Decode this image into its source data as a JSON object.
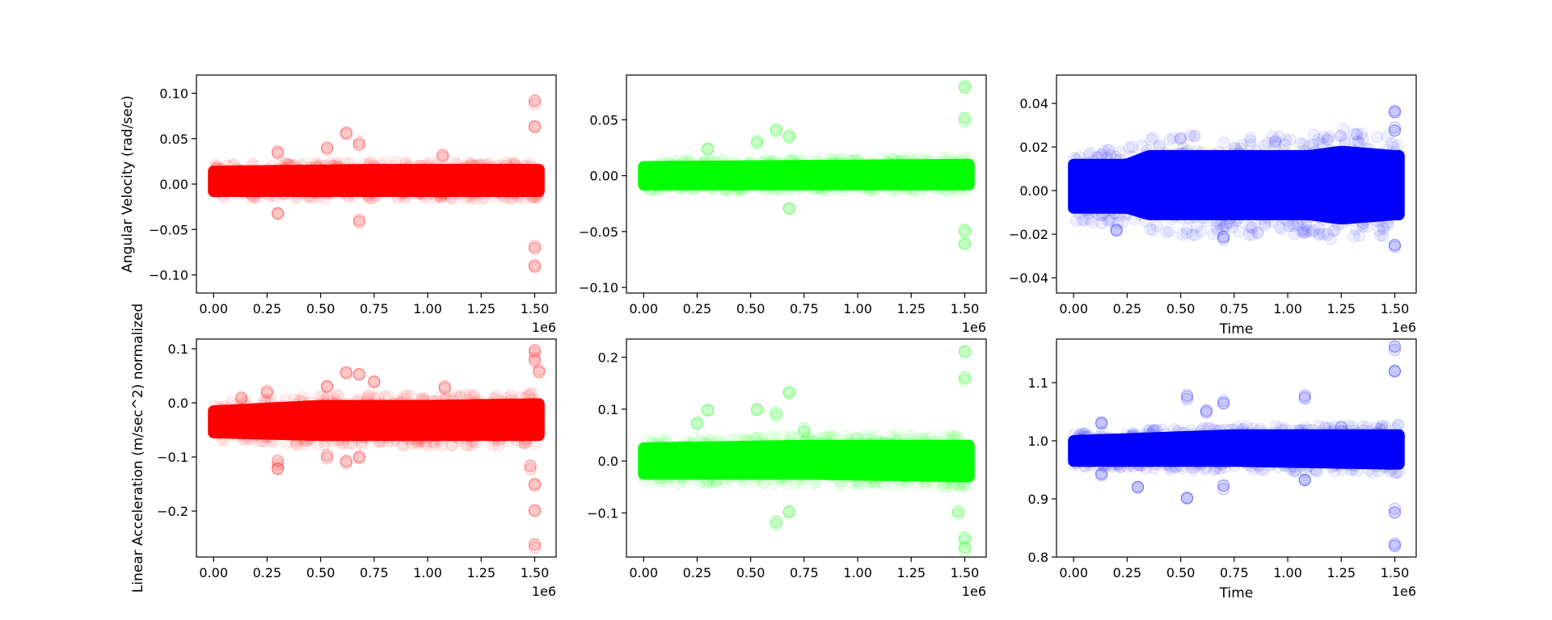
{
  "figure": {
    "row_ylabels": [
      "Angular Velocity (rad/sec)",
      "Linear Acceleration (m/sec^2) normalized"
    ],
    "background": "#ffffff"
  },
  "chart_data": [
    {
      "type": "scatter",
      "color": "#ff0000",
      "row": 0,
      "col": 0,
      "xlim": [
        -0.08,
        1.6
      ],
      "ylim": [
        -0.12,
        0.12
      ],
      "x_offset_label": "1e6",
      "xlabel": "",
      "ylabel": "Angular Velocity (rad/sec)",
      "xticks": [
        0,
        0.25,
        0.5,
        0.75,
        1.0,
        1.25,
        1.5
      ],
      "xtick_labels": [
        "0.00",
        "0.25",
        "0.50",
        "0.75",
        "1.00",
        "1.25",
        "1.50"
      ],
      "yticks": [
        0.1,
        0.05,
        0.0,
        -0.05,
        -0.1
      ],
      "ytick_labels": [
        "0.10",
        "0.05",
        "0.00",
        "−0.05",
        "−0.10"
      ],
      "band": [
        [
          0,
          -0.008,
          0.014
        ],
        [
          0.75,
          -0.008,
          0.016
        ],
        [
          1.5,
          -0.008,
          0.016
        ]
      ],
      "outliers": [
        [
          0.3,
          0.035
        ],
        [
          0.3,
          -0.03
        ],
        [
          0.53,
          0.04
        ],
        [
          0.62,
          0.055
        ],
        [
          0.68,
          0.045
        ],
        [
          0.68,
          -0.04
        ],
        [
          1.5,
          0.09
        ],
        [
          1.5,
          0.065
        ],
        [
          1.5,
          -0.07
        ],
        [
          1.5,
          -0.09
        ],
        [
          1.07,
          0.03
        ]
      ]
    },
    {
      "type": "scatter",
      "color": "#00ff00",
      "row": 0,
      "col": 1,
      "xlim": [
        -0.08,
        1.6
      ],
      "ylim": [
        -0.105,
        0.09
      ],
      "x_offset_label": "1e6",
      "xlabel": "",
      "ylabel": "",
      "xticks": [
        0,
        0.25,
        0.5,
        0.75,
        1.0,
        1.25,
        1.5
      ],
      "xtick_labels": [
        "0.00",
        "0.25",
        "0.50",
        "0.75",
        "1.00",
        "1.25",
        "1.50"
      ],
      "yticks": [
        0.05,
        0.0,
        -0.05,
        -0.1
      ],
      "ytick_labels": [
        "0.05",
        "0.00",
        "−0.05",
        "−0.10"
      ],
      "band": [
        [
          0,
          -0.008,
          0.008
        ],
        [
          0.75,
          -0.008,
          0.009
        ],
        [
          1.5,
          -0.008,
          0.01
        ]
      ],
      "outliers": [
        [
          0.3,
          0.025
        ],
        [
          0.53,
          0.03
        ],
        [
          0.62,
          0.04
        ],
        [
          0.68,
          0.035
        ],
        [
          0.68,
          -0.03
        ],
        [
          1.5,
          0.08
        ],
        [
          1.5,
          0.05
        ],
        [
          1.5,
          -0.05
        ],
        [
          1.5,
          -0.06
        ]
      ]
    },
    {
      "type": "scatter",
      "color": "#0000ff",
      "row": 0,
      "col": 2,
      "xlim": [
        -0.08,
        1.6
      ],
      "ylim": [
        -0.047,
        0.053
      ],
      "x_offset_label": "1e6",
      "xlabel": "Time",
      "ylabel": "",
      "xticks": [
        0,
        0.25,
        0.5,
        0.75,
        1.0,
        1.25,
        1.5
      ],
      "xtick_labels": [
        "0.00",
        "0.25",
        "0.50",
        "0.75",
        "1.00",
        "1.25",
        "1.50"
      ],
      "yticks": [
        0.04,
        0.02,
        0.0,
        -0.02,
        -0.04
      ],
      "ytick_labels": [
        "0.04",
        "0.02",
        "0.00",
        "−0.02",
        "−0.04"
      ],
      "band": [
        [
          0,
          -0.008,
          0.012
        ],
        [
          0.25,
          -0.008,
          0.012
        ],
        [
          0.35,
          -0.011,
          0.016
        ],
        [
          1.1,
          -0.011,
          0.016
        ],
        [
          1.25,
          -0.013,
          0.018
        ],
        [
          1.5,
          -0.011,
          0.016
        ]
      ],
      "outliers": [
        [
          1.5,
          0.036
        ],
        [
          1.5,
          0.028
        ],
        [
          1.5,
          -0.025
        ],
        [
          0.7,
          -0.022
        ],
        [
          0.2,
          -0.018
        ]
      ]
    },
    {
      "type": "scatter",
      "color": "#ff0000",
      "row": 1,
      "col": 0,
      "xlim": [
        -0.08,
        1.6
      ],
      "ylim": [
        -0.285,
        0.118
      ],
      "x_offset_label": "1e6",
      "xlabel": "",
      "ylabel": "Linear Acceleration (m/sec^2) normalized",
      "xticks": [
        0,
        0.25,
        0.5,
        0.75,
        1.0,
        1.25,
        1.5
      ],
      "xtick_labels": [
        "0.00",
        "0.25",
        "0.50",
        "0.75",
        "1.00",
        "1.25",
        "1.50"
      ],
      "yticks": [
        0.1,
        0.0,
        -0.1,
        -0.2
      ],
      "ytick_labels": [
        "0.1",
        "0.0",
        "−0.1",
        "−0.2"
      ],
      "band": [
        [
          0,
          -0.055,
          -0.015
        ],
        [
          0.5,
          -0.06,
          -0.005
        ],
        [
          1.0,
          -0.06,
          -0.005
        ],
        [
          1.5,
          -0.06,
          -0.002
        ]
      ],
      "outliers": [
        [
          0.13,
          0.01
        ],
        [
          0.25,
          0.02
        ],
        [
          0.3,
          -0.11
        ],
        [
          0.3,
          -0.12
        ],
        [
          0.53,
          0.03
        ],
        [
          0.53,
          -0.1
        ],
        [
          0.62,
          0.055
        ],
        [
          0.62,
          -0.11
        ],
        [
          0.68,
          0.05
        ],
        [
          0.68,
          -0.1
        ],
        [
          0.75,
          0.04
        ],
        [
          1.08,
          0.03
        ],
        [
          1.5,
          0.095
        ],
        [
          1.5,
          0.08
        ],
        [
          1.5,
          -0.15
        ],
        [
          1.5,
          -0.2
        ],
        [
          1.5,
          -0.265
        ],
        [
          1.52,
          0.06
        ],
        [
          1.48,
          -0.12
        ]
      ]
    },
    {
      "type": "scatter",
      "color": "#00ff00",
      "row": 1,
      "col": 1,
      "xlim": [
        -0.08,
        1.6
      ],
      "ylim": [
        -0.185,
        0.235
      ],
      "x_offset_label": "1e6",
      "xlabel": "",
      "ylabel": "",
      "xticks": [
        0,
        0.25,
        0.5,
        0.75,
        1.0,
        1.25,
        1.5
      ],
      "xtick_labels": [
        "0.00",
        "0.25",
        "0.50",
        "0.75",
        "1.00",
        "1.25",
        "1.50"
      ],
      "yticks": [
        0.2,
        0.1,
        0.0,
        -0.1
      ],
      "ytick_labels": [
        "0.2",
        "0.1",
        "0.0",
        "−0.1"
      ],
      "band": [
        [
          0,
          -0.025,
          0.025
        ],
        [
          0.75,
          -0.025,
          0.03
        ],
        [
          1.5,
          -0.03,
          0.03
        ]
      ],
      "outliers": [
        [
          0.25,
          0.07
        ],
        [
          0.3,
          0.1
        ],
        [
          0.53,
          0.1
        ],
        [
          0.62,
          0.09
        ],
        [
          0.62,
          -0.12
        ],
        [
          0.68,
          0.13
        ],
        [
          0.68,
          -0.1
        ],
        [
          0.75,
          0.06
        ],
        [
          1.5,
          0.21
        ],
        [
          1.5,
          0.16
        ],
        [
          1.5,
          -0.15
        ],
        [
          1.5,
          -0.17
        ],
        [
          1.47,
          -0.1
        ]
      ]
    },
    {
      "type": "scatter",
      "color": "#0000ff",
      "row": 1,
      "col": 2,
      "xlim": [
        -0.08,
        1.6
      ],
      "ylim": [
        0.8,
        1.175
      ],
      "x_offset_label": "1e6",
      "xlabel": "Time",
      "ylabel": "",
      "xticks": [
        0,
        0.25,
        0.5,
        0.75,
        1.0,
        1.25,
        1.5
      ],
      "xtick_labels": [
        "0.00",
        "0.25",
        "0.50",
        "0.75",
        "1.00",
        "1.25",
        "1.50"
      ],
      "yticks": [
        0.8,
        0.9,
        1.0,
        1.1
      ],
      "ytick_labels": [
        "0.8",
        "0.9",
        "1.0",
        "1.1"
      ],
      "band": [
        [
          0,
          0.965,
          1.0
        ],
        [
          0.75,
          0.965,
          1.01
        ],
        [
          1.5,
          0.96,
          1.01
        ]
      ],
      "outliers": [
        [
          0.13,
          1.03
        ],
        [
          0.13,
          0.94
        ],
        [
          0.3,
          0.92
        ],
        [
          0.53,
          1.075
        ],
        [
          0.53,
          0.9
        ],
        [
          0.62,
          1.05
        ],
        [
          0.7,
          1.065
        ],
        [
          0.7,
          0.92
        ],
        [
          1.08,
          1.075
        ],
        [
          1.08,
          0.93
        ],
        [
          1.5,
          1.16
        ],
        [
          1.5,
          1.12
        ],
        [
          1.5,
          0.88
        ],
        [
          1.5,
          0.82
        ],
        [
          1.25,
          1.02
        ]
      ]
    }
  ]
}
